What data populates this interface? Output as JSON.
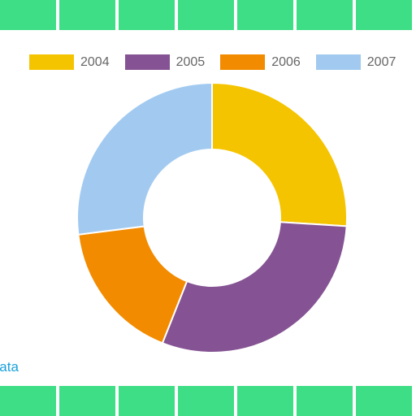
{
  "page": {
    "tile_color": "#3ede86",
    "top_tiles": 7,
    "bottom_tiles": 7,
    "footer_link": "Data"
  },
  "chart_data": {
    "type": "pie",
    "donut": true,
    "categories": [
      "2004",
      "2005",
      "2006",
      "2007"
    ],
    "values": [
      26,
      30,
      17,
      27
    ],
    "colors": [
      "#f5c400",
      "#855393",
      "#f28b00",
      "#a2caf0"
    ],
    "legend_position": "top",
    "title": ""
  }
}
